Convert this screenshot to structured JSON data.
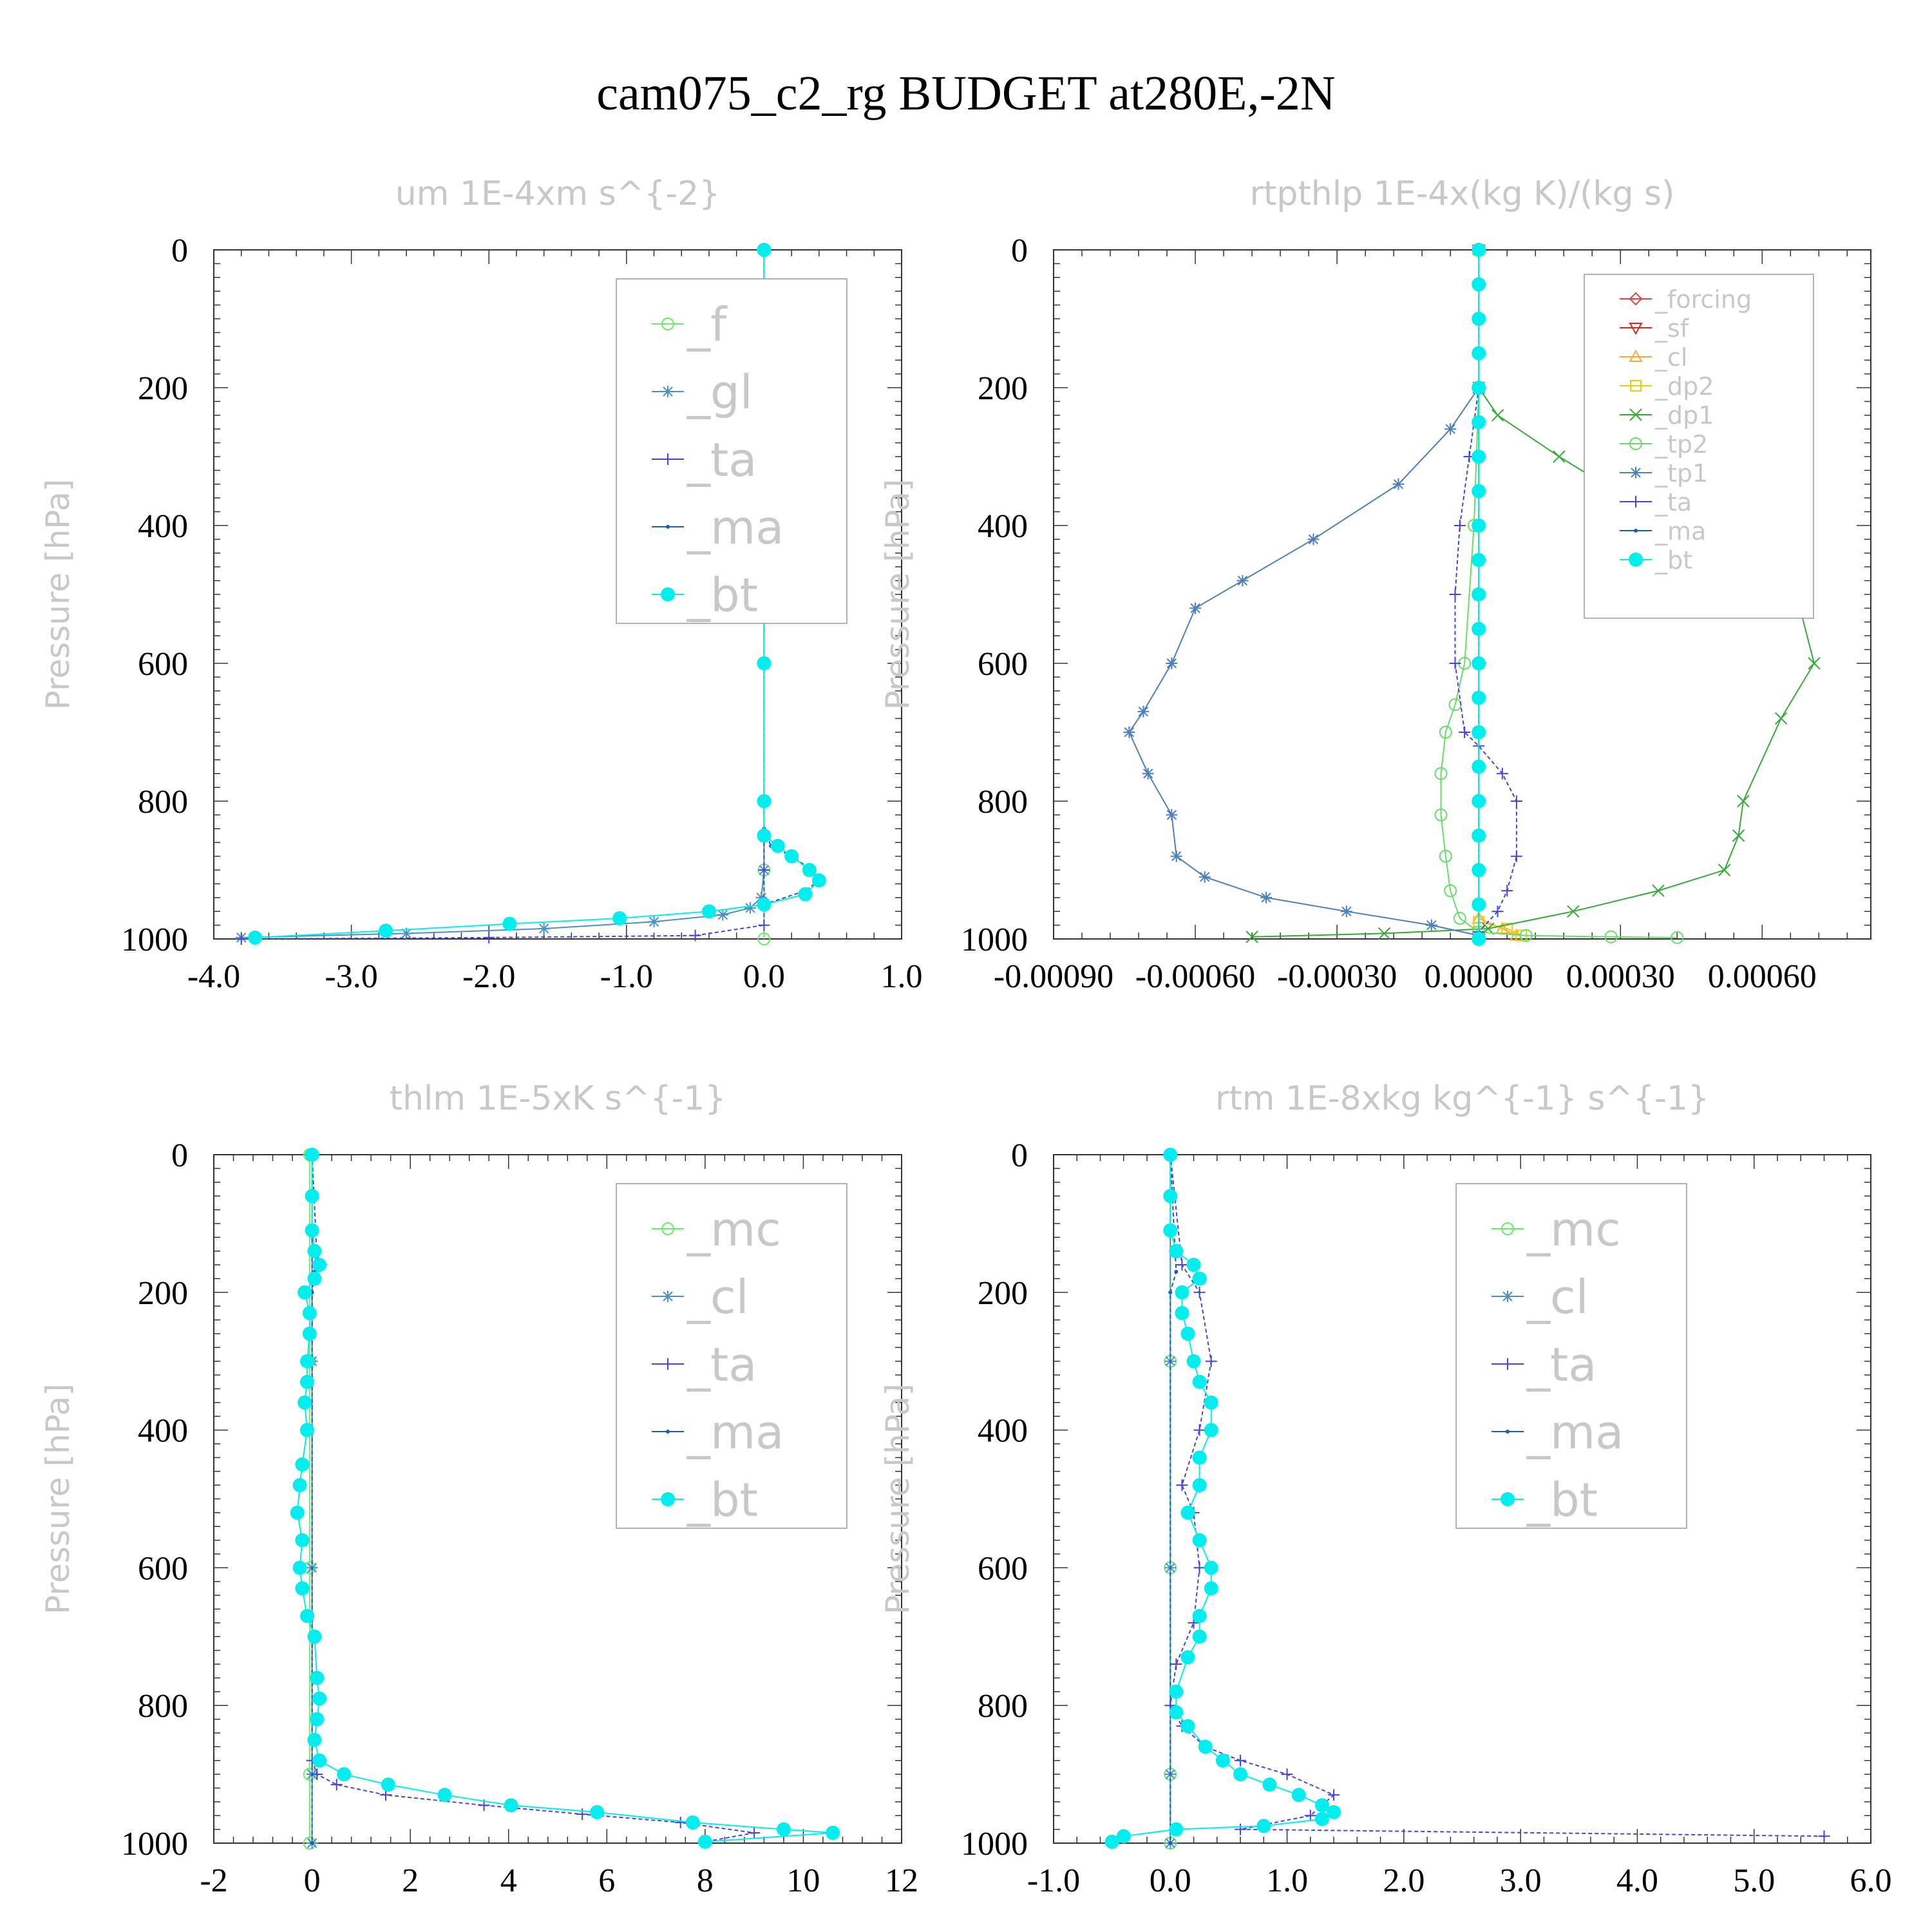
{
  "title": "cam075_c2_rg  BUDGET at280E,-2N",
  "colors": {
    "f": "#66ee66",
    "g": "#4a90c8",
    "ta": "#4444dd",
    "ma": "#1a5fa8",
    "bt": "#00eeee",
    "forcing": "#dd4444",
    "sf": "#dd2222",
    "cl_orange": "#ffaa33",
    "dp2": "#eecc00",
    "dp1": "#33aa33",
    "tp2": "#66dd66",
    "tp1": "#4a7fc0",
    "mc": "#66ee66",
    "cl": "#4a90c8"
  },
  "chart_data": [
    {
      "type": "line",
      "title": "um   1E-4xm s^{-2}",
      "ylabel": "Pressure [hPa]",
      "xlim": [
        -4.0,
        1.0
      ],
      "ylim": [
        1000,
        0
      ],
      "xticks": [
        "-4.0",
        "-3.0",
        "-2.0",
        "-1.0",
        "0.0",
        "1.0"
      ],
      "xtick_values": [
        -4,
        -3,
        -2,
        -1,
        0,
        1
      ],
      "yticks": [
        "0",
        "200",
        "400",
        "600",
        "800",
        "1000"
      ],
      "legend_style": "large",
      "series": [
        {
          "name": "_f",
          "key": "f",
          "marker": "circle",
          "x": [
            0,
            0,
            0,
            0
          ],
          "y": [
            0,
            500,
            900,
            1000
          ]
        },
        {
          "name": "_gl",
          "key": "g",
          "marker": "star",
          "x": [
            0,
            0,
            0,
            0,
            0,
            0,
            0,
            -0.02,
            -0.1,
            -0.3,
            -0.8,
            -1.6,
            -2.6,
            -3.8
          ],
          "y": [
            0,
            200,
            400,
            600,
            800,
            850,
            900,
            940,
            955,
            965,
            975,
            985,
            992,
            998
          ]
        },
        {
          "name": "_ta",
          "key": "ta",
          "marker": "plus",
          "x": [
            0,
            0,
            0,
            0,
            0,
            0,
            0,
            -0.5,
            -2.0,
            -3.8
          ],
          "y": [
            0,
            200,
            400,
            600,
            800,
            900,
            980,
            995,
            998,
            1000
          ]
        },
        {
          "name": "_ma",
          "key": "ma",
          "marker": "dot",
          "x": [
            0,
            0,
            0.05,
            0.2,
            0.35,
            0.4,
            0.3,
            0
          ],
          "y": [
            0,
            840,
            865,
            880,
            900,
            915,
            930,
            950
          ]
        },
        {
          "name": "_bt",
          "key": "bt",
          "marker": "filled",
          "x": [
            0,
            0,
            0,
            -0.03,
            -0.02,
            0,
            0,
            0,
            0,
            0,
            0.1,
            0.2,
            0.33,
            0.4,
            0.3,
            0.0,
            -0.4,
            -1.05,
            -1.85,
            -2.75,
            -3.7
          ],
          "y": [
            0,
            60,
            100,
            130,
            160,
            200,
            400,
            600,
            800,
            850,
            865,
            880,
            900,
            915,
            935,
            950,
            960,
            970,
            978,
            988,
            998
          ]
        }
      ]
    },
    {
      "type": "line",
      "title": "rtpthlp   1E-4x(kg K)/(kg s)",
      "ylabel": "Pressure [hPa]",
      "xlim": [
        -0.0009,
        0.00083
      ],
      "ylim": [
        1000,
        0
      ],
      "xticks": [
        "-0.00090",
        "-0.00060",
        "-0.00030",
        "0.00000",
        "0.00030",
        "0.00060"
      ],
      "xtick_values": [
        -0.0009,
        -0.0006,
        -0.0003,
        0,
        0.0003,
        0.0006
      ],
      "yticks": [
        "0",
        "200",
        "400",
        "600",
        "800",
        "1000"
      ],
      "legend_style": "small",
      "series": [
        {
          "name": "_forcing",
          "key": "forcing",
          "marker": "diamond",
          "x": [
            0,
            0
          ],
          "y": [
            0,
            1000
          ]
        },
        {
          "name": "_sf",
          "key": "sf",
          "marker": "tri-down",
          "x": [
            0,
            0
          ],
          "y": [
            0,
            1000
          ]
        },
        {
          "name": "_cl",
          "key": "cl_orange",
          "marker": "tri-up",
          "x": [
            0,
            0,
            5e-05,
            8e-05
          ],
          "y": [
            0,
            970,
            985,
            995
          ]
        },
        {
          "name": "_dp2",
          "key": "dp2",
          "marker": "square",
          "x": [
            0,
            0,
            6e-05,
            9e-05
          ],
          "y": [
            0,
            975,
            985,
            995
          ]
        },
        {
          "name": "_dp1",
          "key": "dp1",
          "marker": "x",
          "x": [
            0,
            4e-05,
            0.00017,
            0.00036,
            0.00055,
            0.00068,
            0.00071,
            0.00064,
            0.00056,
            0.00055,
            0.00052,
            0.00038,
            0.0002,
            2e-05,
            -0.0002,
            -0.00048
          ],
          "y": [
            200,
            240,
            300,
            380,
            450,
            520,
            600,
            680,
            800,
            850,
            900,
            930,
            960,
            985,
            992,
            997
          ]
        },
        {
          "name": "_tp2",
          "key": "tp2",
          "marker": "circle",
          "x": [
            0,
            -1e-05,
            -3e-05,
            -5e-05,
            -7e-05,
            -8e-05,
            -8e-05,
            -7e-05,
            -6e-05,
            -4e-05,
            0,
            0.0001,
            0.00028,
            0.00042
          ],
          "y": [
            200,
            400,
            600,
            660,
            700,
            760,
            820,
            880,
            930,
            970,
            990,
            995,
            997,
            998
          ]
        },
        {
          "name": "_tp1",
          "key": "tp1",
          "marker": "star",
          "x": [
            0,
            -6e-05,
            -0.00017,
            -0.00035,
            -0.0005,
            -0.0006,
            -0.00065,
            -0.00071,
            -0.00074,
            -0.0007,
            -0.00065,
            -0.00064,
            -0.00058,
            -0.00045,
            -0.00028,
            -0.0001,
            0
          ],
          "y": [
            200,
            260,
            340,
            420,
            480,
            520,
            600,
            670,
            700,
            760,
            820,
            880,
            910,
            940,
            960,
            980,
            995
          ]
        },
        {
          "name": "_ta",
          "key": "ta",
          "marker": "plus",
          "x": [
            0,
            -2e-05,
            -4e-05,
            -5e-05,
            -5e-05,
            -3e-05,
            0,
            5e-05,
            8e-05,
            8e-05,
            6e-05,
            4e-05,
            0
          ],
          "y": [
            200,
            300,
            400,
            500,
            600,
            700,
            720,
            760,
            800,
            880,
            930,
            960,
            990
          ]
        },
        {
          "name": "_ma",
          "key": "ma",
          "marker": "dot",
          "x": [
            0,
            0
          ],
          "y": [
            0,
            1000
          ]
        },
        {
          "name": "_bt",
          "key": "bt",
          "marker": "filled",
          "x": [
            0,
            0,
            0,
            0,
            0,
            0,
            0,
            0,
            0,
            0,
            0,
            0,
            0,
            0,
            0,
            0,
            0,
            0,
            0,
            0,
            0
          ],
          "y": [
            0,
            50,
            100,
            150,
            200,
            250,
            300,
            350,
            400,
            450,
            500,
            550,
            600,
            650,
            700,
            750,
            800,
            850,
            900,
            950,
            1000
          ]
        }
      ]
    },
    {
      "type": "line",
      "title": "thlm   1E-5xK s^{-1}",
      "ylabel": "Pressure [hPa]",
      "xlim": [
        -2,
        12
      ],
      "ylim": [
        1000,
        0
      ],
      "xticks": [
        "-2",
        "0",
        "2",
        "4",
        "6",
        "8",
        "10",
        "12"
      ],
      "xtick_values": [
        -2,
        0,
        2,
        4,
        6,
        8,
        10,
        12
      ],
      "yticks": [
        "0",
        "200",
        "400",
        "600",
        "800",
        "1000"
      ],
      "legend_style": "large",
      "series": [
        {
          "name": "_mc",
          "key": "mc",
          "marker": "circle",
          "x": [
            -0.05,
            -0.05,
            -0.05,
            -0.05,
            -0.05
          ],
          "y": [
            0,
            300,
            600,
            900,
            1000
          ]
        },
        {
          "name": "_cl",
          "key": "cl",
          "marker": "star",
          "x": [
            0,
            0,
            0,
            0,
            0
          ],
          "y": [
            0,
            300,
            600,
            900,
            1000
          ]
        },
        {
          "name": "_ta",
          "key": "ta",
          "marker": "plus",
          "x": [
            0,
            0,
            0.1,
            0.5,
            1.5,
            3.5,
            5.5,
            7.5,
            9.0,
            8.0
          ],
          "y": [
            0,
            880,
            900,
            915,
            930,
            945,
            958,
            970,
            985,
            998
          ]
        },
        {
          "name": "_ma",
          "key": "ma",
          "marker": "dot",
          "x": [
            0,
            0.1,
            0.05,
            0,
            0
          ],
          "y": [
            0,
            150,
            170,
            200,
            1000
          ]
        },
        {
          "name": "_bt",
          "key": "bt",
          "marker": "filled",
          "x": [
            0,
            0,
            0,
            0.05,
            0.15,
            0.05,
            -0.15,
            -0.05,
            -0.05,
            -0.1,
            -0.1,
            -0.15,
            -0.1,
            -0.2,
            -0.25,
            -0.3,
            -0.2,
            -0.25,
            -0.2,
            -0.1,
            0.05,
            0.1,
            0.15,
            0.1,
            0.05,
            0.15,
            0.65,
            1.55,
            2.7,
            4.05,
            5.8,
            7.75,
            9.6,
            10.6,
            8.0
          ],
          "y": [
            0,
            60,
            110,
            140,
            160,
            180,
            200,
            230,
            260,
            300,
            330,
            360,
            400,
            450,
            480,
            520,
            560,
            600,
            630,
            670,
            700,
            760,
            790,
            820,
            850,
            880,
            900,
            915,
            930,
            945,
            955,
            970,
            980,
            985,
            998
          ]
        }
      ]
    },
    {
      "type": "line",
      "title": "rtm   1E-8xkg kg^{-1} s^{-1}",
      "ylabel": "Pressure [hPa]",
      "xlim": [
        -1.0,
        6.0
      ],
      "ylim": [
        1000,
        0
      ],
      "xticks": [
        "-1.0",
        "0.0",
        "1.0",
        "2.0",
        "3.0",
        "4.0",
        "5.0",
        "6.0"
      ],
      "xtick_values": [
        -1,
        0,
        1,
        2,
        3,
        4,
        5,
        6
      ],
      "yticks": [
        "0",
        "200",
        "400",
        "600",
        "800",
        "1000"
      ],
      "legend_style": "large",
      "series": [
        {
          "name": "_mc",
          "key": "mc",
          "marker": "circle",
          "x": [
            0,
            0,
            0,
            0,
            0
          ],
          "y": [
            0,
            300,
            600,
            900,
            1000
          ]
        },
        {
          "name": "_cl",
          "key": "cl",
          "marker": "star",
          "x": [
            0,
            0,
            0,
            0,
            0
          ],
          "y": [
            0,
            300,
            600,
            900,
            1000
          ]
        },
        {
          "name": "_ta",
          "key": "ta",
          "marker": "plus",
          "x": [
            0,
            0.1,
            0.25,
            0.35,
            0.25,
            0.1,
            0.2,
            0.25,
            0.2,
            0.05,
            0,
            0.1,
            0.3,
            0.6,
            1.0,
            1.4,
            1.2,
            0.6,
            5.6
          ],
          "y": [
            0,
            160,
            200,
            300,
            400,
            480,
            520,
            600,
            680,
            740,
            800,
            830,
            860,
            880,
            900,
            930,
            960,
            980,
            990
          ]
        },
        {
          "name": "_ma",
          "key": "ma",
          "marker": "dot",
          "x": [
            0,
            0.05,
            0,
            0
          ],
          "y": [
            0,
            170,
            200,
            1000
          ]
        },
        {
          "name": "_bt",
          "key": "bt",
          "marker": "filled",
          "x": [
            0,
            0,
            0,
            0.05,
            0.2,
            0.25,
            0.1,
            0.1,
            0.15,
            0.2,
            0.25,
            0.35,
            0.35,
            0.25,
            0.25,
            0.15,
            0.25,
            0.35,
            0.35,
            0.25,
            0.25,
            0.15,
            0.05,
            0.05,
            0.15,
            0.3,
            0.45,
            0.6,
            0.85,
            1.1,
            1.3,
            1.4,
            1.3,
            0.8,
            0.05,
            -0.4,
            -0.5
          ],
          "y": [
            0,
            60,
            110,
            140,
            160,
            180,
            200,
            230,
            260,
            300,
            330,
            360,
            400,
            440,
            480,
            520,
            560,
            600,
            630,
            670,
            700,
            730,
            780,
            810,
            830,
            860,
            880,
            900,
            915,
            930,
            945,
            955,
            965,
            975,
            980,
            990,
            998
          ]
        }
      ]
    }
  ]
}
